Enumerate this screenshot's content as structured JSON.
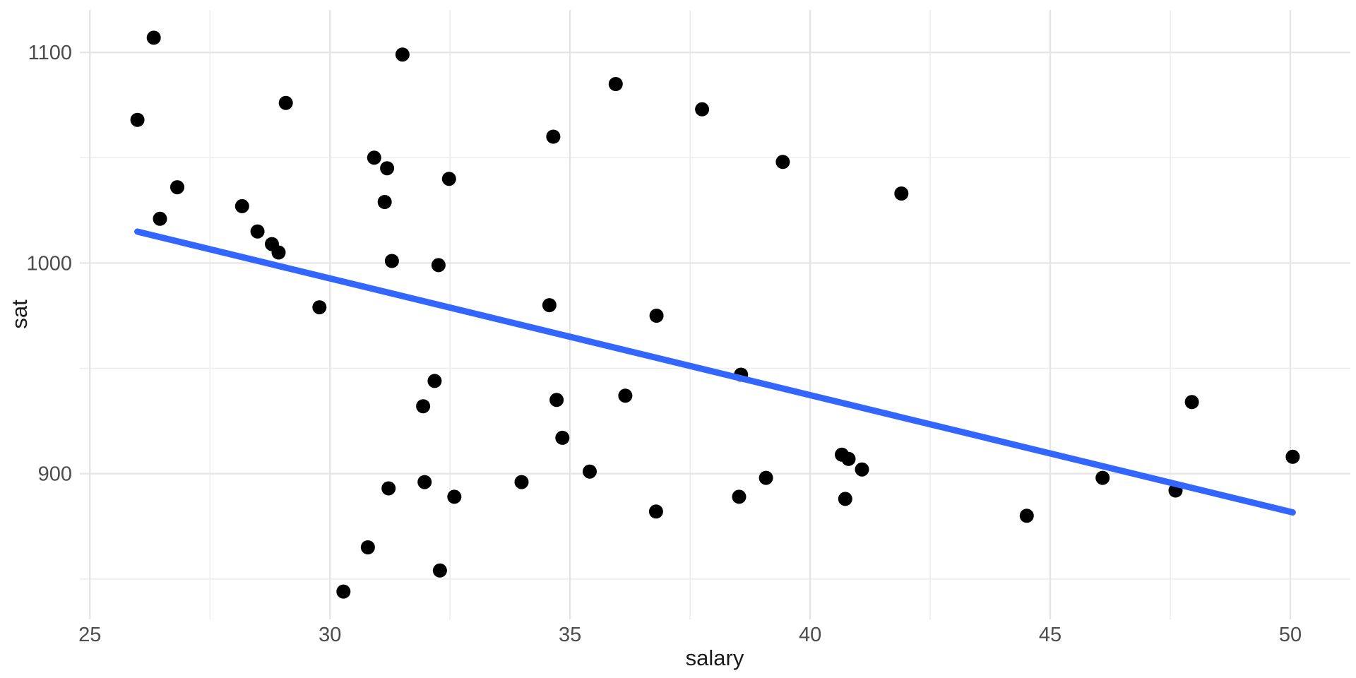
{
  "chart_data": {
    "type": "scatter",
    "title": "",
    "xlabel": "salary",
    "ylabel": "sat",
    "x_ticks": [
      25,
      30,
      35,
      40,
      45,
      50
    ],
    "x_tick_labels": [
      "25",
      "30",
      "35",
      "40",
      "45",
      "50"
    ],
    "x_minor_ticks": [
      27.5,
      32.5,
      37.5,
      42.5,
      47.5
    ],
    "y_ticks": [
      900,
      1000,
      1100
    ],
    "y_tick_labels": [
      "900",
      "1000",
      "1100"
    ],
    "y_minor_ticks": [
      850,
      950,
      1050
    ],
    "xlim": [
      24.79,
      51.25
    ],
    "ylim": [
      830.8,
      1120.2
    ],
    "grid": true,
    "legend_position": "none",
    "points": [
      [
        31.14,
        1029
      ],
      [
        47.95,
        934
      ],
      [
        32.18,
        944
      ],
      [
        28.93,
        1005
      ],
      [
        41.08,
        902
      ],
      [
        34.57,
        980
      ],
      [
        50.05,
        908
      ],
      [
        39.08,
        898
      ],
      [
        32.59,
        889
      ],
      [
        32.29,
        854
      ],
      [
        38.52,
        889
      ],
      [
        29.78,
        979
      ],
      [
        39.43,
        1048
      ],
      [
        36.79,
        882
      ],
      [
        31.51,
        1099
      ],
      [
        34.65,
        1060
      ],
      [
        32.26,
        999
      ],
      [
        26.46,
        1021
      ],
      [
        31.97,
        896
      ],
      [
        40.66,
        909
      ],
      [
        40.8,
        907
      ],
      [
        41.9,
        1033
      ],
      [
        35.95,
        1085
      ],
      [
        26.82,
        1036
      ],
      [
        31.19,
        1045
      ],
      [
        28.79,
        1009
      ],
      [
        30.92,
        1050
      ],
      [
        34.84,
        917
      ],
      [
        34.72,
        935
      ],
      [
        46.09,
        898
      ],
      [
        28.49,
        1015
      ],
      [
        47.61,
        892
      ],
      [
        30.79,
        865
      ],
      [
        26.33,
        1107
      ],
      [
        36.8,
        975
      ],
      [
        28.17,
        1027
      ],
      [
        38.56,
        947
      ],
      [
        44.51,
        880
      ],
      [
        40.73,
        888
      ],
      [
        30.28,
        844
      ],
      [
        25.99,
        1068
      ],
      [
        32.48,
        1040
      ],
      [
        31.22,
        893
      ],
      [
        29.08,
        1076
      ],
      [
        35.41,
        901
      ],
      [
        33.99,
        896
      ],
      [
        36.15,
        937
      ],
      [
        31.94,
        932
      ],
      [
        37.75,
        1073
      ],
      [
        31.29,
        1001
      ]
    ],
    "regression_line": {
      "x1": 25.99,
      "y1": 1014.9,
      "x2": 50.05,
      "y2": 881.6
    },
    "colors": {
      "background": "#ffffff",
      "point": "#000000",
      "line": "#3366FF",
      "grid_major": "#e4e4e4",
      "grid_minor": "#ededed",
      "tick_text": "#4d4d4d",
      "title_text": "#1a1a1a"
    }
  }
}
